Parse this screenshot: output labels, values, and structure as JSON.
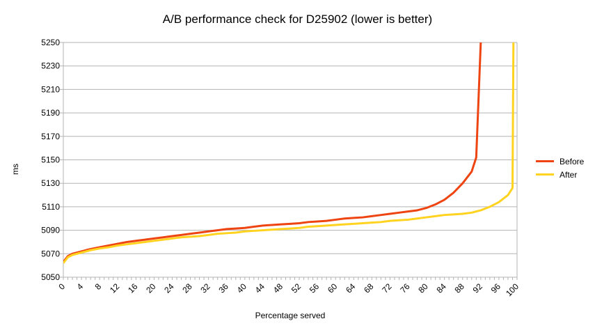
{
  "chart_data": {
    "type": "line",
    "title": "A/B performance check for D25902 (lower is better)",
    "xlabel": "Percentage served",
    "ylabel": "ms",
    "xlim": [
      0,
      100
    ],
    "ylim": [
      5050,
      5250
    ],
    "y_ticks": [
      5050,
      5070,
      5090,
      5110,
      5130,
      5150,
      5170,
      5190,
      5210,
      5230,
      5250
    ],
    "x_ticks": [
      0,
      4,
      8,
      12,
      16,
      20,
      24,
      28,
      32,
      36,
      40,
      44,
      48,
      52,
      56,
      60,
      64,
      68,
      72,
      76,
      80,
      84,
      88,
      92,
      96,
      100
    ],
    "grid": true,
    "legend_position": "right",
    "series": [
      {
        "name": "Before",
        "color": "#ee4411",
        "x": [
          0,
          1,
          2,
          4,
          6,
          8,
          10,
          12,
          14,
          16,
          18,
          20,
          22,
          24,
          26,
          28,
          30,
          32,
          34,
          36,
          38,
          40,
          42,
          44,
          46,
          48,
          50,
          52,
          54,
          56,
          58,
          60,
          62,
          64,
          66,
          68,
          70,
          72,
          74,
          76,
          78,
          80,
          82,
          84,
          86,
          88,
          90,
          91,
          92
        ],
        "y": [
          5063,
          5068,
          5070,
          5072,
          5074,
          5075.5,
          5077,
          5078.5,
          5080,
          5081,
          5082,
          5083,
          5084,
          5085,
          5086,
          5087,
          5088,
          5089,
          5090,
          5091,
          5091.5,
          5092,
          5093,
          5094,
          5094.5,
          5095,
          5095.5,
          5096,
          5097,
          5097.5,
          5098,
          5099,
          5100,
          5100.5,
          5101,
          5102,
          5103,
          5104,
          5105,
          5106,
          5107,
          5109,
          5112,
          5116,
          5122,
          5130,
          5140,
          5152,
          5250
        ]
      },
      {
        "name": "After",
        "color": "#ffd320",
        "x": [
          0,
          1,
          2,
          4,
          6,
          8,
          10,
          12,
          14,
          16,
          18,
          20,
          22,
          24,
          26,
          28,
          30,
          32,
          34,
          36,
          38,
          40,
          42,
          44,
          46,
          48,
          50,
          52,
          54,
          56,
          58,
          60,
          62,
          64,
          66,
          68,
          70,
          72,
          74,
          76,
          78,
          80,
          82,
          84,
          86,
          88,
          90,
          92,
          94,
          96,
          98,
          99,
          99.2
        ],
        "y": [
          5062,
          5067,
          5069,
          5071,
          5073,
          5074.5,
          5075.5,
          5077,
          5078,
          5079,
          5080,
          5081,
          5082,
          5083,
          5084,
          5084.5,
          5085,
          5086,
          5087,
          5087.5,
          5088,
          5089,
          5089.5,
          5090,
          5090.5,
          5091,
          5091.5,
          5092,
          5093,
          5093.5,
          5094,
          5094.5,
          5095,
          5095.5,
          5096,
          5096.5,
          5097,
          5098,
          5098.5,
          5099,
          5100,
          5101,
          5102,
          5103,
          5103.5,
          5104,
          5105,
          5107,
          5110,
          5114,
          5120,
          5126,
          5250
        ]
      }
    ]
  }
}
